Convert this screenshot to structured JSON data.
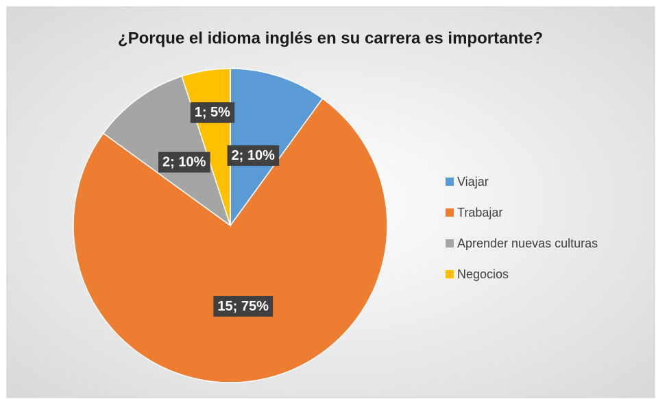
{
  "chart_data": {
    "type": "pie",
    "title": "¿Porque el idioma inglés en su carrera es importante?",
    "categories": [
      "Viajar",
      "Trabajar",
      "Aprender nuevas culturas",
      "Negocios"
    ],
    "values": [
      2,
      15,
      2,
      1
    ],
    "value_labels": [
      "2; 10%",
      "15; 75%",
      "2; 10%",
      "1; 5%"
    ],
    "colors": [
      "#5B9BD5",
      "#ED7D31",
      "#A5A5A5",
      "#FFC000"
    ],
    "legend": "right"
  }
}
